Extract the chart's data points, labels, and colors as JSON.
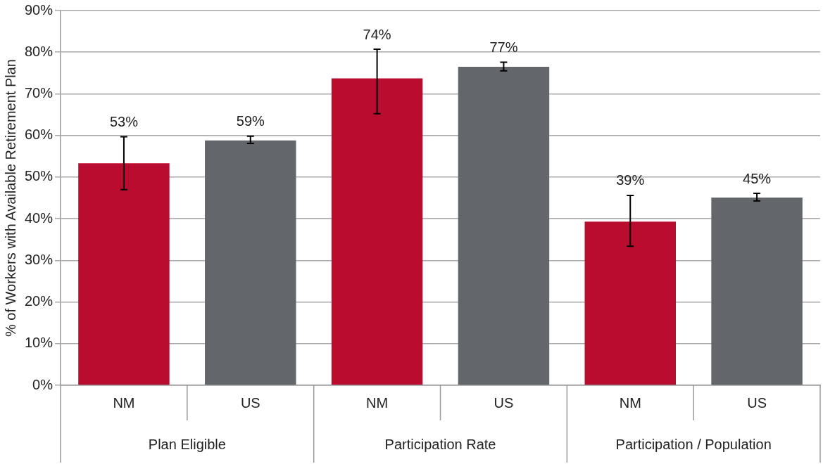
{
  "chart_data": {
    "type": "bar",
    "categories": [
      "NM",
      "US",
      "NM",
      "US",
      "NM",
      "US"
    ],
    "values": [
      53.3,
      58.8,
      73.7,
      76.5,
      39.3,
      45.1
    ],
    "colors": [
      "#ba0c2f",
      "#63666a",
      "#ba0c2f",
      "#63666a",
      "#ba0c2f",
      "#63666a"
    ],
    "errors": [
      [
        47.0,
        59.7
      ],
      [
        58.1,
        59.8
      ],
      [
        65.2,
        80.7
      ],
      [
        75.5,
        77.6
      ],
      [
        33.4,
        45.6
      ],
      [
        44.3,
        46.1
      ]
    ],
    "value_labels": [
      "53%",
      "59%",
      "74%",
      "77%",
      "39%",
      "45%"
    ],
    "annotations": [
      "Plan Eligible",
      "Participation Rate",
      "Participation / Population"
    ],
    "ylabel": "% of Workers with Available Retirement Plan",
    "ylim": [
      0,
      90
    ],
    "yticks": [
      {
        "value": 0,
        "label": "0%"
      },
      {
        "value": 10,
        "label": "10%"
      },
      {
        "value": 20,
        "label": "20%"
      },
      {
        "value": 30,
        "label": "30%"
      },
      {
        "value": 40,
        "label": "40%"
      },
      {
        "value": 50,
        "label": "50%"
      },
      {
        "value": 60,
        "label": "60%"
      },
      {
        "value": 70,
        "label": "70%"
      },
      {
        "value": 80,
        "label": "80%"
      },
      {
        "value": 90,
        "label": "90%"
      }
    ],
    "grid": "y",
    "legend": false
  }
}
